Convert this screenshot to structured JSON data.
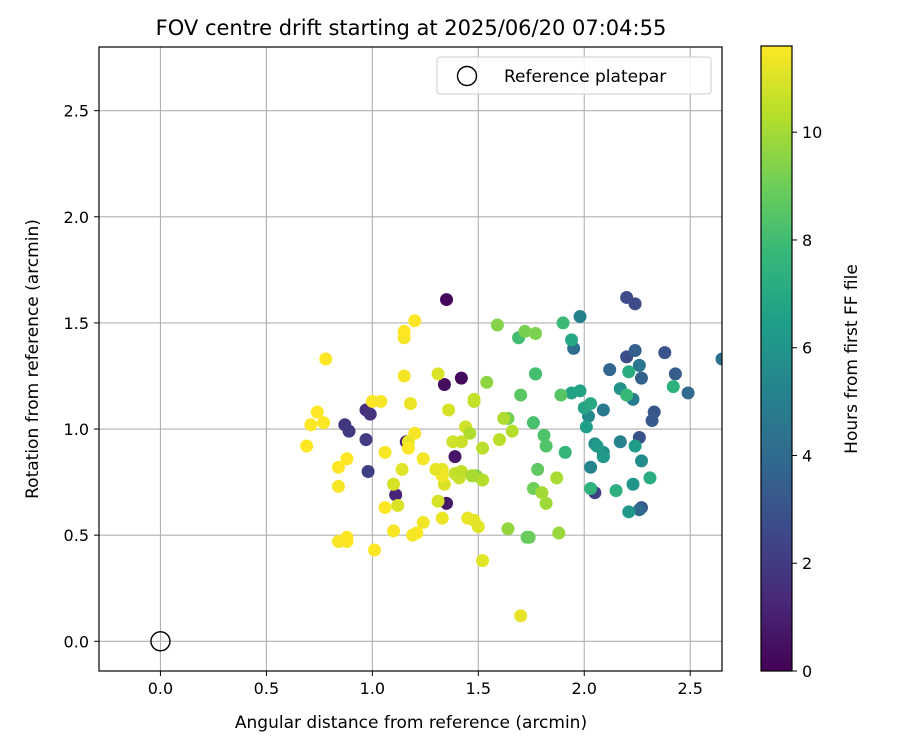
{
  "chart_data": {
    "type": "scatter",
    "title": "FOV centre drift starting at 2025/06/20 07:04:55",
    "xlabel": "Angular distance from reference (arcmin)",
    "ylabel": "Rotation from reference (arcmin)",
    "xlim": [
      -0.29,
      2.65
    ],
    "ylim": [
      -0.14,
      2.8
    ],
    "xticks": [
      0.0,
      0.5,
      1.0,
      1.5,
      2.0,
      2.5
    ],
    "xtick_labels": [
      "0.0",
      "0.5",
      "1.0",
      "1.5",
      "2.0",
      "2.5"
    ],
    "yticks": [
      0.0,
      0.5,
      1.0,
      1.5,
      2.0,
      2.5
    ],
    "ytick_labels": [
      "0.0",
      "0.5",
      "1.0",
      "1.5",
      "2.0",
      "2.5"
    ],
    "grid": true,
    "legend": {
      "placement": "top-right",
      "label": "Reference platepar"
    },
    "reference_point": {
      "x": 0.0,
      "y": 0.0
    },
    "colorbar": {
      "label": "Hours from first FF file",
      "range": [
        0,
        11.6
      ],
      "ticks": [
        0,
        2,
        4,
        6,
        8,
        10
      ],
      "tick_labels": [
        "0",
        "2",
        "4",
        "6",
        "8",
        "10"
      ],
      "colormap": "viridis",
      "colors": [
        "#440154",
        "#482878",
        "#3e4989",
        "#31688e",
        "#26828e",
        "#1f9e89",
        "#35b779",
        "#6ece58",
        "#b5de2b",
        "#fde725"
      ]
    },
    "points": [
      [
        1.35,
        1.61,
        0.2
      ],
      [
        1.42,
        1.24,
        0.3
      ],
      [
        1.34,
        1.21,
        0.4
      ],
      [
        1.39,
        0.87,
        0.7
      ],
      [
        1.35,
        0.65,
        0.8
      ],
      [
        1.16,
        0.94,
        1.0
      ],
      [
        1.11,
        0.69,
        1.2
      ],
      [
        0.97,
        1.09,
        1.6
      ],
      [
        0.99,
        1.07,
        1.7
      ],
      [
        0.87,
        1.02,
        1.8
      ],
      [
        0.89,
        0.99,
        2.0
      ],
      [
        0.97,
        0.95,
        2.1
      ],
      [
        0.98,
        0.8,
        2.2
      ],
      [
        2.05,
        0.7,
        2.3
      ],
      [
        2.2,
        1.62,
        2.6
      ],
      [
        2.24,
        1.59,
        2.7
      ],
      [
        2.2,
        1.34,
        2.8
      ],
      [
        2.26,
        0.96,
        2.9
      ],
      [
        2.38,
        1.36,
        3.0
      ],
      [
        2.33,
        1.08,
        3.1
      ],
      [
        2.27,
        0.63,
        3.2
      ],
      [
        2.32,
        1.04,
        3.3
      ],
      [
        2.43,
        1.26,
        3.4
      ],
      [
        2.24,
        1.37,
        3.5
      ],
      [
        2.27,
        1.24,
        3.6
      ],
      [
        2.12,
        1.28,
        3.8
      ],
      [
        2.26,
        0.62,
        3.9
      ],
      [
        2.49,
        1.17,
        4.0
      ],
      [
        1.95,
        1.38,
        4.2
      ],
      [
        2.65,
        1.33,
        4.3
      ],
      [
        2.26,
        1.3,
        4.5
      ],
      [
        2.09,
        1.09,
        4.7
      ],
      [
        2.23,
        1.14,
        4.8
      ],
      [
        2.09,
        0.87,
        4.9
      ],
      [
        1.98,
        1.53,
        5.1
      ],
      [
        2.17,
        0.94,
        5.2
      ],
      [
        2.03,
        0.82,
        5.3
      ],
      [
        2.02,
        1.06,
        5.5
      ],
      [
        2.27,
        0.85,
        5.6
      ],
      [
        2.05,
        0.93,
        5.7
      ],
      [
        2.09,
        0.89,
        5.8
      ],
      [
        2.17,
        1.19,
        5.9
      ],
      [
        2.23,
        0.74,
        6.0
      ],
      [
        2.21,
        0.61,
        6.1
      ],
      [
        2.09,
        0.87,
        6.2
      ],
      [
        2.06,
        0.92,
        6.3
      ],
      [
        2.24,
        0.92,
        6.4
      ],
      [
        2.01,
        1.01,
        6.5
      ],
      [
        1.94,
        1.17,
        6.6
      ],
      [
        1.98,
        1.18,
        6.7
      ],
      [
        2.0,
        1.1,
        6.8
      ],
      [
        1.94,
        1.42,
        6.9
      ],
      [
        2.03,
        1.12,
        7.0
      ],
      [
        2.21,
        1.27,
        7.1
      ],
      [
        2.31,
        0.77,
        7.2
      ],
      [
        2.15,
        0.71,
        7.3
      ],
      [
        2.42,
        1.2,
        7.4
      ],
      [
        2.03,
        0.72,
        7.5
      ],
      [
        1.77,
        1.26,
        7.6
      ],
      [
        1.91,
        0.89,
        7.7
      ],
      [
        2.2,
        1.16,
        7.8
      ],
      [
        1.9,
        1.5,
        7.9
      ],
      [
        1.69,
        1.43,
        8.0
      ],
      [
        1.77,
        1.26,
        8.1
      ],
      [
        1.76,
        1.03,
        8.2
      ],
      [
        1.81,
        0.97,
        8.3
      ],
      [
        1.82,
        0.92,
        8.4
      ],
      [
        1.89,
        1.16,
        8.5
      ],
      [
        1.7,
        1.16,
        8.6
      ],
      [
        1.78,
        0.81,
        8.7
      ],
      [
        1.73,
        0.49,
        8.8
      ],
      [
        1.74,
        0.49,
        8.9
      ],
      [
        1.76,
        0.72,
        9.0
      ],
      [
        1.64,
        1.05,
        9.1
      ],
      [
        1.72,
        1.46,
        9.2
      ],
      [
        1.77,
        1.45,
        9.3
      ],
      [
        1.59,
        1.49,
        9.4
      ],
      [
        1.49,
        0.78,
        9.5
      ],
      [
        1.54,
        1.22,
        9.6
      ],
      [
        1.64,
        0.53,
        9.7
      ],
      [
        1.88,
        0.51,
        9.8
      ],
      [
        1.82,
        0.65,
        9.9
      ],
      [
        1.8,
        0.7,
        10.0
      ],
      [
        1.87,
        0.77,
        10.1
      ],
      [
        1.62,
        1.05,
        10.2
      ],
      [
        1.52,
        0.76,
        10.3
      ],
      [
        1.52,
        0.91,
        10.4
      ],
      [
        1.48,
        1.13,
        10.5
      ],
      [
        1.48,
        1.14,
        10.6
      ],
      [
        1.41,
        0.77,
        10.7
      ],
      [
        1.44,
        1.01,
        10.8
      ],
      [
        1.36,
        1.09,
        10.9
      ],
      [
        1.31,
        1.26,
        11.0
      ],
      [
        1.52,
        0.38,
        11.1
      ],
      [
        1.7,
        0.12,
        11.2
      ],
      [
        1.1,
        0.74,
        10.9
      ],
      [
        1.12,
        0.64,
        11.0
      ],
      [
        1.14,
        0.81,
        11.1
      ],
      [
        1.17,
        0.94,
        11.2
      ],
      [
        1.18,
        1.12,
        11.3
      ],
      [
        1.15,
        1.25,
        11.4
      ],
      [
        1.15,
        1.43,
        11.5
      ],
      [
        1.15,
        1.46,
        11.6
      ],
      [
        1.2,
        1.51,
        11.6
      ],
      [
        1.45,
        0.58,
        11.3
      ],
      [
        1.48,
        0.57,
        11.2
      ],
      [
        1.5,
        0.54,
        11.1
      ],
      [
        1.34,
        0.74,
        11.0
      ],
      [
        1.31,
        0.66,
        10.9
      ],
      [
        1.38,
        0.94,
        10.8
      ],
      [
        1.42,
        0.94,
        10.7
      ],
      [
        1.39,
        0.79,
        10.6
      ],
      [
        1.42,
        0.8,
        10.5
      ],
      [
        1.6,
        0.95,
        10.4
      ],
      [
        1.66,
        0.99,
        10.3
      ],
      [
        1.46,
        0.98,
        10.2
      ],
      [
        1.47,
        0.78,
        10.1
      ],
      [
        1.24,
        0.86,
        11.4
      ],
      [
        1.2,
        0.98,
        11.5
      ],
      [
        1.17,
        0.91,
        11.6
      ],
      [
        1.21,
        0.51,
        11.6
      ],
      [
        1.19,
        0.5,
        11.5
      ],
      [
        1.24,
        0.56,
        11.4
      ],
      [
        1.1,
        0.52,
        11.5
      ],
      [
        1.33,
        0.58,
        11.3
      ],
      [
        1.33,
        0.81,
        11.2
      ],
      [
        1.06,
        0.89,
        11.5
      ],
      [
        1.06,
        0.63,
        11.6
      ],
      [
        1.01,
        0.43,
        11.6
      ],
      [
        0.88,
        0.47,
        11.6
      ],
      [
        0.84,
        0.47,
        11.5
      ],
      [
        0.88,
        0.49,
        11.6
      ],
      [
        0.84,
        0.73,
        11.5
      ],
      [
        0.88,
        0.86,
        11.6
      ],
      [
        0.84,
        0.82,
        11.6
      ],
      [
        0.69,
        0.92,
        11.6
      ],
      [
        0.71,
        1.02,
        11.6
      ],
      [
        0.77,
        1.03,
        11.6
      ],
      [
        0.74,
        1.08,
        11.6
      ],
      [
        0.78,
        1.33,
        11.6
      ],
      [
        1.0,
        1.13,
        11.6
      ],
      [
        1.04,
        1.13,
        11.5
      ],
      [
        1.33,
        0.78,
        11.4
      ],
      [
        1.3,
        0.81,
        11.2
      ]
    ]
  }
}
